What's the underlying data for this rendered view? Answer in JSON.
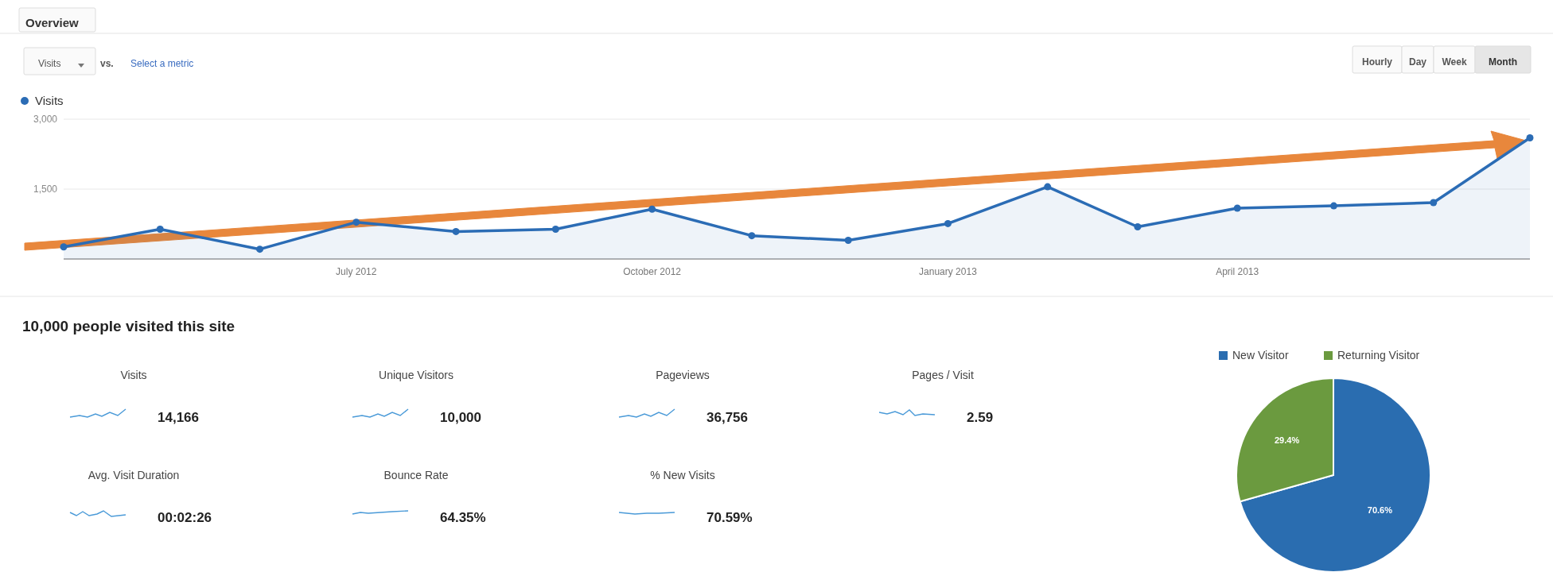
{
  "chart_data": [
    {
      "type": "area",
      "x": [
        "2012-04",
        "2012-05",
        "2012-06",
        "2012-07",
        "2012-08",
        "2012-09",
        "2012-10",
        "2012-11",
        "2012-12",
        "2013-01",
        "2013-02",
        "2013-03",
        "2013-04",
        "2013-05",
        "2013-06",
        "2013-07"
      ],
      "series": [
        {
          "name": "Visits",
          "color": "#2b6cb5",
          "values": [
            260,
            640,
            210,
            790,
            590,
            640,
            1070,
            500,
            400,
            760,
            1550,
            690,
            1090,
            1140,
            1210,
            2600
          ]
        }
      ],
      "xlim": [
        "2012-04",
        "2013-07"
      ],
      "xticks": [
        {
          "value": "2012-07",
          "label": "July 2012"
        },
        {
          "value": "2012-10",
          "label": "October 2012"
        },
        {
          "value": "2013-01",
          "label": "January 2013"
        },
        {
          "value": "2013-04",
          "label": "April 2013"
        }
      ],
      "ylim": [
        0,
        3000
      ],
      "yticks": [
        {
          "value": 1500,
          "label": "1,500"
        },
        {
          "value": 3000,
          "label": "3,000"
        }
      ],
      "grid": "y",
      "legend": "top left",
      "marker": "circle",
      "annotations": [
        "Overview",
        "Visits",
        "vs.",
        "Select a metric",
        "Hourly",
        "Day",
        "Week",
        "Month"
      ]
    },
    {
      "type": "other",
      "title": "10,000 people visited this site",
      "categories": [
        "Visits",
        "Unique Visitors",
        "Pageviews",
        "Pages / Visit",
        "Avg. Visit Duration",
        "Bounce Rate",
        "% New Visits"
      ],
      "value_labels": [
        "14,166",
        "10,000",
        "36,756",
        "2.59",
        "00:02:26",
        "64.35%",
        "70.59%"
      ]
    },
    {
      "type": "pie",
      "categories": [
        "New Visitor",
        "Returning Visitor"
      ],
      "values": [
        70.6,
        29.4
      ],
      "colors": [
        "#2a6db0",
        "#6b9a3f"
      ],
      "value_labels": [
        "70.6%",
        "29.4%"
      ],
      "legend": "top"
    }
  ]
}
